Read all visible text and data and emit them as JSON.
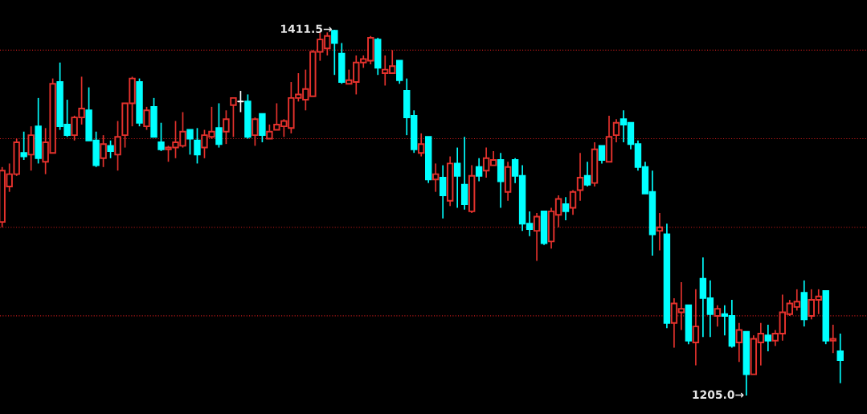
{
  "chart_data": {
    "type": "candlestick",
    "categories": [
      null,
      null,
      null,
      null,
      null,
      null,
      null,
      null,
      null,
      null,
      null,
      null,
      null,
      null,
      null,
      null,
      null,
      null,
      null,
      null,
      null,
      null,
      null,
      null,
      null,
      null,
      null,
      null,
      null,
      null,
      null,
      null,
      null,
      null,
      null,
      null,
      null,
      null,
      null,
      null,
      null,
      null,
      null,
      null,
      null,
      null,
      null,
      null,
      null,
      null,
      null,
      null,
      null,
      null,
      null,
      null,
      null,
      null,
      null,
      null,
      null,
      null,
      null,
      null,
      null,
      null,
      null,
      null,
      null,
      null,
      null,
      null,
      null,
      null,
      null,
      null,
      null,
      null,
      null,
      null,
      null,
      null,
      null,
      null,
      null,
      null,
      null,
      null,
      null,
      null,
      null,
      null,
      null,
      null,
      null,
      null,
      null,
      null,
      null,
      null,
      null,
      null,
      null,
      null,
      null,
      null,
      null,
      null,
      null,
      null,
      null,
      null,
      null,
      null,
      null,
      null,
      null
    ],
    "ohlc": [
      [
        1303,
        1334,
        1300,
        1332
      ],
      [
        1323,
        1336,
        1320,
        1330
      ],
      [
        1330,
        1350,
        1329,
        1348
      ],
      [
        1342,
        1354,
        1338,
        1340
      ],
      [
        1341,
        1357,
        1332,
        1352
      ],
      [
        1357,
        1373,
        1336,
        1339
      ],
      [
        1337,
        1356,
        1330,
        1348
      ],
      [
        1342,
        1384,
        1342,
        1381
      ],
      [
        1382,
        1393,
        1355,
        1357
      ],
      [
        1358,
        1372,
        1351,
        1352
      ],
      [
        1352,
        1363,
        1349,
        1362
      ],
      [
        1362,
        1385,
        1358,
        1367
      ],
      [
        1366,
        1379,
        1349,
        1349
      ],
      [
        1349,
        1354,
        1334,
        1335
      ],
      [
        1339,
        1352,
        1334,
        1347
      ],
      [
        1346,
        1349,
        1339,
        1343
      ],
      [
        1341,
        1360,
        1332,
        1351
      ],
      [
        1352,
        1370,
        1345,
        1370
      ],
      [
        1370,
        1385,
        1357,
        1384
      ],
      [
        1382,
        1384,
        1357,
        1359
      ],
      [
        1357,
        1368,
        1355,
        1366
      ],
      [
        1368,
        1373,
        1351,
        1351
      ],
      [
        1348,
        1359,
        1343,
        1344
      ],
      [
        1344,
        1346,
        1337,
        1345
      ],
      [
        1345,
        1360,
        1339,
        1348
      ],
      [
        1346,
        1365,
        1345,
        1354
      ],
      [
        1355,
        1355,
        1341,
        1350
      ],
      [
        1349,
        1356,
        1336,
        1341
      ],
      [
        1345,
        1355,
        1339,
        1352
      ],
      [
        1351,
        1368,
        1350,
        1354
      ],
      [
        1356,
        1370,
        1345,
        1347
      ],
      [
        1354,
        1366,
        1347,
        1361
      ],
      [
        1369,
        1373,
        1351,
        1373
      ],
      [
        1371,
        1377,
        1365,
        1371
      ],
      [
        1371,
        1375,
        1350,
        1351
      ],
      [
        1352,
        1362,
        1346,
        1361
      ],
      [
        1364,
        1364,
        1348,
        1352
      ],
      [
        1350,
        1358,
        1350,
        1354
      ],
      [
        1355,
        1370,
        1355,
        1358
      ],
      [
        1357,
        1361,
        1351,
        1360
      ],
      [
        1356,
        1382,
        1353,
        1373
      ],
      [
        1373,
        1387,
        1371,
        1375
      ],
      [
        1372,
        1389,
        1366,
        1378
      ],
      [
        1374,
        1400,
        1374,
        1399
      ],
      [
        1399,
        1410,
        1394,
        1406
      ],
      [
        1401,
        1410,
        1397,
        1408
      ],
      [
        1411,
        1411.5,
        1386,
        1404
      ],
      [
        1398,
        1404,
        1381,
        1382
      ],
      [
        1381,
        1389,
        1381,
        1383
      ],
      [
        1382,
        1397,
        1375,
        1393
      ],
      [
        1393,
        1397,
        1390,
        1395
      ],
      [
        1394,
        1408,
        1392,
        1407
      ],
      [
        1406,
        1407,
        1386,
        1390
      ],
      [
        1387,
        1397,
        1380,
        1389
      ],
      [
        1387,
        1400,
        1387,
        1391
      ],
      [
        1394,
        1394,
        1381,
        1383
      ],
      [
        1377,
        1384,
        1352,
        1362
      ],
      [
        1363,
        1366,
        1342,
        1344
      ],
      [
        1342,
        1353,
        1340,
        1347
      ],
      [
        1351,
        1351,
        1325,
        1327
      ],
      [
        1327,
        1336,
        1320,
        1330
      ],
      [
        1328,
        1335,
        1305,
        1318
      ],
      [
        1315,
        1340,
        1312,
        1336
      ],
      [
        1336,
        1345,
        1311,
        1329
      ],
      [
        1324,
        1351,
        1310,
        1313
      ],
      [
        1309,
        1335,
        1308,
        1329
      ],
      [
        1334,
        1339,
        1326,
        1329
      ],
      [
        1332,
        1345,
        1328,
        1339
      ],
      [
        1335,
        1343,
        1335,
        1338
      ],
      [
        1338,
        1342,
        1311,
        1326
      ],
      [
        1320,
        1337,
        1315,
        1334
      ],
      [
        1338,
        1339,
        1325,
        1329
      ],
      [
        1329,
        1335,
        1298,
        1302
      ],
      [
        1302,
        1309,
        1295,
        1299
      ],
      [
        1298,
        1308,
        1281,
        1306
      ],
      [
        1309,
        1309,
        1290,
        1291
      ],
      [
        1292,
        1311,
        1288,
        1309
      ],
      [
        1307,
        1318,
        1300,
        1316
      ],
      [
        1313,
        1317,
        1304,
        1309
      ],
      [
        1311,
        1321,
        1307,
        1320
      ],
      [
        1321,
        1342,
        1315,
        1328
      ],
      [
        1329,
        1337,
        1323,
        1324
      ],
      [
        1325,
        1348,
        1323,
        1344
      ],
      [
        1346,
        1346,
        1336,
        1338
      ],
      [
        1337,
        1363,
        1337,
        1351
      ],
      [
        1352,
        1361,
        1348,
        1359
      ],
      [
        1361,
        1366,
        1348,
        1358
      ],
      [
        1359,
        1359,
        1344,
        1347
      ],
      [
        1347,
        1349,
        1332,
        1334
      ],
      [
        1334,
        1337,
        1319,
        1319
      ],
      [
        1320,
        1332,
        1284,
        1296
      ],
      [
        1298,
        1308,
        1287,
        1300
      ],
      [
        1296,
        1302,
        1243,
        1246
      ],
      [
        1246,
        1260,
        1232,
        1257
      ],
      [
        1252,
        1269,
        1242,
        1254
      ],
      [
        1256,
        1256,
        1234,
        1236
      ],
      [
        1235,
        1265,
        1222,
        1244
      ],
      [
        1271,
        1283,
        1238,
        1260
      ],
      [
        1260,
        1270,
        1238,
        1251
      ],
      [
        1250,
        1256,
        1244,
        1254
      ],
      [
        1251,
        1256,
        1239,
        1250
      ],
      [
        1250,
        1259,
        1232,
        1233
      ],
      [
        1235,
        1246,
        1224,
        1242
      ],
      [
        1241,
        1241,
        1205,
        1217
      ],
      [
        1217,
        1239,
        1217,
        1237
      ],
      [
        1235,
        1246,
        1222,
        1240
      ],
      [
        1239,
        1245,
        1230,
        1236
      ],
      [
        1236,
        1242,
        1233,
        1240
      ],
      [
        1240,
        1262,
        1236,
        1252
      ],
      [
        1251,
        1259,
        1250,
        1257
      ],
      [
        1255,
        1265,
        1253,
        1258
      ],
      [
        1263,
        1270,
        1244,
        1248
      ],
      [
        1250,
        1265,
        1248,
        1259
      ],
      [
        1259,
        1265,
        1251,
        1261
      ],
      [
        1264,
        1264,
        1234,
        1236
      ],
      [
        1236,
        1245,
        1229,
        1237
      ],
      [
        1230,
        1240,
        1212,
        1225
      ]
    ],
    "colors": [
      "#e5322d",
      "#e5322d",
      "#e5322d",
      "#00ffff",
      "#e5322d",
      "#00ffff",
      "#e5322d",
      "#e5322d",
      "#00ffff",
      "#00ffff",
      "#e5322d",
      "#e5322d",
      "#00ffff",
      "#00ffff",
      "#e5322d",
      "#00ffff",
      "#e5322d",
      "#e5322d",
      "#e5322d",
      "#00ffff",
      "#e5322d",
      "#00ffff",
      "#00ffff",
      "#e5322d",
      "#e5322d",
      "#e5322d",
      "#00ffff",
      "#00ffff",
      "#e5322d",
      "#e5322d",
      "#00ffff",
      "#e5322d",
      "#e5322d",
      "#ffffff",
      "#00ffff",
      "#e5322d",
      "#00ffff",
      "#e5322d",
      "#e5322d",
      "#e5322d",
      "#e5322d",
      "#e5322d",
      "#e5322d",
      "#e5322d",
      "#e5322d",
      "#e5322d",
      "#00ffff",
      "#00ffff",
      "#e5322d",
      "#e5322d",
      "#e5322d",
      "#e5322d",
      "#00ffff",
      "#e5322d",
      "#e5322d",
      "#00ffff",
      "#00ffff",
      "#00ffff",
      "#e5322d",
      "#00ffff",
      "#e5322d",
      "#00ffff",
      "#e5322d",
      "#00ffff",
      "#00ffff",
      "#e5322d",
      "#00ffff",
      "#e5322d",
      "#e5322d",
      "#00ffff",
      "#e5322d",
      "#00ffff",
      "#00ffff",
      "#00ffff",
      "#e5322d",
      "#00ffff",
      "#e5322d",
      "#e5322d",
      "#00ffff",
      "#e5322d",
      "#e5322d",
      "#00ffff",
      "#e5322d",
      "#00ffff",
      "#e5322d",
      "#e5322d",
      "#00ffff",
      "#00ffff",
      "#00ffff",
      "#00ffff",
      "#00ffff",
      "#e5322d",
      "#00ffff",
      "#e5322d",
      "#e5322d",
      "#00ffff",
      "#e5322d",
      "#00ffff",
      "#00ffff",
      "#e5322d",
      "#00ffff",
      "#00ffff",
      "#e5322d",
      "#00ffff",
      "#e5322d",
      "#e5322d",
      "#00ffff",
      "#e5322d",
      "#e5322d",
      "#e5322d",
      "#e5322d",
      "#00ffff",
      "#e5322d",
      "#e5322d",
      "#00ffff",
      "#e5322d",
      "#00ffff"
    ],
    "ylim": [
      1194.6,
      1428.3
    ],
    "yticks": [
      {
        "value": 1250,
        "label": null
      },
      {
        "value": 1300,
        "label": null
      },
      {
        "value": 1350,
        "label": null
      },
      {
        "value": 1400,
        "label": null
      }
    ],
    "grid": "y",
    "annotations": [
      "1411.5→",
      "1205.0→"
    ]
  }
}
